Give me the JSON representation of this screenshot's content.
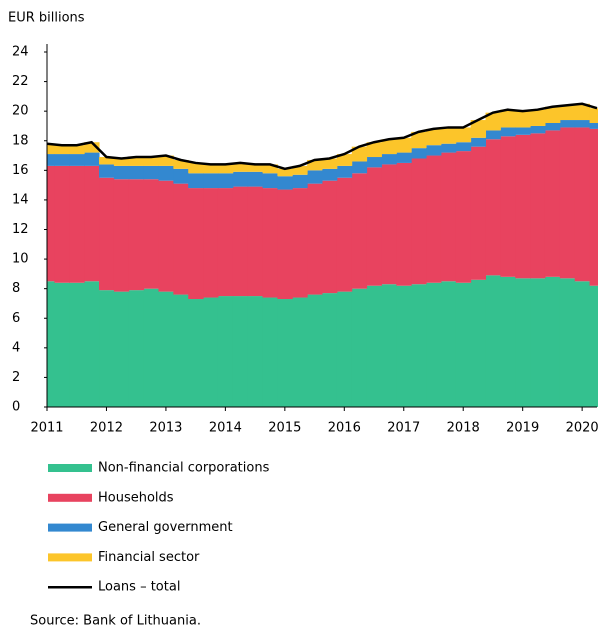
{
  "chart_data": {
    "type": "stacked_area",
    "y_label": "EUR billions",
    "source": "Source: Bank of Lithuania.",
    "x": [
      2011,
      2011.25,
      2011.5,
      2011.75,
      2012,
      2012.25,
      2012.5,
      2012.75,
      2013,
      2013.25,
      2013.5,
      2013.75,
      2014,
      2014.25,
      2014.5,
      2014.75,
      2015,
      2015.25,
      2015.5,
      2015.75,
      2016,
      2016.25,
      2016.5,
      2016.75,
      2017,
      2017.25,
      2017.5,
      2017.75,
      2018,
      2018.25,
      2018.5,
      2018.75,
      2019,
      2019.25,
      2019.5,
      2019.75,
      2020,
      2020.25
    ],
    "series": [
      {
        "name": "Non-financial corporations",
        "color": "#34c18f",
        "values": [
          8.5,
          8.4,
          8.4,
          8.5,
          7.9,
          7.8,
          7.9,
          8.0,
          7.8,
          7.6,
          7.3,
          7.4,
          7.5,
          7.5,
          7.5,
          7.4,
          7.3,
          7.4,
          7.6,
          7.7,
          7.8,
          8.0,
          8.2,
          8.3,
          8.2,
          8.3,
          8.4,
          8.5,
          8.4,
          8.6,
          8.9,
          8.8,
          8.7,
          8.7,
          8.8,
          8.7,
          8.5,
          8.2
        ]
      },
      {
        "name": "Households",
        "color": "#e8435f",
        "values": [
          7.8,
          7.9,
          7.9,
          7.8,
          7.6,
          7.6,
          7.5,
          7.4,
          7.5,
          7.5,
          7.5,
          7.4,
          7.3,
          7.4,
          7.4,
          7.4,
          7.4,
          7.4,
          7.5,
          7.6,
          7.7,
          7.8,
          8.0,
          8.1,
          8.3,
          8.5,
          8.6,
          8.7,
          8.9,
          9.0,
          9.2,
          9.5,
          9.7,
          9.8,
          9.9,
          10.2,
          10.4,
          10.6
        ]
      },
      {
        "name": "General government",
        "color": "#3388d0",
        "values": [
          0.8,
          0.8,
          0.8,
          0.9,
          0.9,
          0.9,
          0.9,
          0.9,
          1.0,
          1.0,
          1.0,
          1.0,
          1.0,
          1.0,
          1.0,
          1.0,
          0.9,
          0.9,
          0.9,
          0.8,
          0.8,
          0.8,
          0.7,
          0.7,
          0.7,
          0.7,
          0.7,
          0.6,
          0.6,
          0.6,
          0.6,
          0.6,
          0.5,
          0.5,
          0.5,
          0.5,
          0.5,
          0.4
        ]
      },
      {
        "name": "Financial sector",
        "color": "#fcc52a",
        "values": [
          0.7,
          0.6,
          0.6,
          0.7,
          0.5,
          0.5,
          0.6,
          0.6,
          0.7,
          0.6,
          0.7,
          0.6,
          0.6,
          0.6,
          0.5,
          0.6,
          0.5,
          0.6,
          0.7,
          0.7,
          0.8,
          1.0,
          1.0,
          1.0,
          1.0,
          1.1,
          1.1,
          1.1,
          1.0,
          1.2,
          1.2,
          1.2,
          1.1,
          1.1,
          1.1,
          1.0,
          1.1,
          1.0
        ]
      }
    ],
    "total": {
      "name": "Loans – total",
      "color": "#000000",
      "values": [
        17.8,
        17.7,
        17.7,
        17.9,
        16.9,
        16.8,
        16.9,
        16.9,
        17.0,
        16.7,
        16.5,
        16.4,
        16.4,
        16.5,
        16.4,
        16.4,
        16.1,
        16.3,
        16.7,
        16.8,
        17.1,
        17.6,
        17.9,
        18.1,
        18.2,
        18.6,
        18.8,
        18.9,
        18.9,
        19.4,
        19.9,
        20.1,
        20.0,
        20.1,
        20.3,
        20.4,
        20.5,
        20.2
      ]
    },
    "xlim": [
      2011,
      2020.25
    ],
    "xticks": [
      2011,
      2012,
      2013,
      2014,
      2015,
      2016,
      2017,
      2018,
      2019,
      2020
    ],
    "ylim": [
      0,
      24
    ],
    "yticks": [
      0,
      2,
      4,
      6,
      8,
      10,
      12,
      14,
      16,
      18,
      20,
      22,
      24
    ]
  }
}
